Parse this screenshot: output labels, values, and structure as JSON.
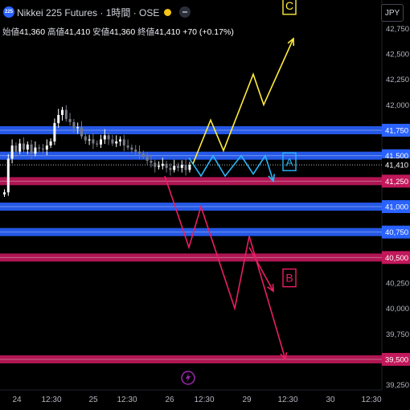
{
  "header": {
    "symbol_badge": "225",
    "title": "Nikkei 225 Futures · 1時間 · OSE",
    "currency": "JPY"
  },
  "ohlc": {
    "open_label": "始値",
    "open": "41,360",
    "high_label": "高値",
    "high": "41,410",
    "low_label": "安値",
    "low": "41,360",
    "close_label": "終値",
    "close": "41,410",
    "change": "+70 (+0.17%)"
  },
  "colors": {
    "background": "#000000",
    "up_candle": "#ffffff",
    "down_candle": "#787b86",
    "resistance_blue": "#2962ff",
    "support_red": "#c2185b",
    "scenario_a": "#29b6f6",
    "scenario_b": "#e91e63",
    "scenario_c": "#ffeb3b",
    "event_icon": "#9c27b0"
  },
  "price_axis": {
    "ticks": [
      "42,750",
      "42,500",
      "42,250",
      "42,000",
      "41,750",
      "41,500",
      "41,410",
      "41,250",
      "41,000",
      "40,750",
      "40,500",
      "40,250",
      "40,000",
      "39,750",
      "39,500",
      "39,250"
    ]
  },
  "time_axis": {
    "ticks": [
      "24",
      "12:30",
      "25",
      "12:30",
      "26",
      "12:30",
      "29",
      "12:30",
      "30",
      "12:30"
    ]
  },
  "levels": [
    {
      "price": 41750,
      "label": "41,750",
      "kind": "blue"
    },
    {
      "price": 41500,
      "label": "41,500",
      "kind": "blue"
    },
    {
      "price": 41250,
      "label": "41,250",
      "kind": "red"
    },
    {
      "price": 41000,
      "label": "41,000",
      "kind": "blue"
    },
    {
      "price": 40750,
      "label": "40,750",
      "kind": "blue"
    },
    {
      "price": 40500,
      "label": "40,500",
      "kind": "red"
    },
    {
      "price": 39500,
      "label": "39,500",
      "kind": "red"
    }
  ],
  "current_price": {
    "price": 41410,
    "label": "41,410"
  },
  "scenarios": [
    {
      "name": "A",
      "path": [
        [
          235,
          41480
        ],
        [
          250,
          41300
        ],
        [
          265,
          41500
        ],
        [
          280,
          41300
        ],
        [
          300,
          41500
        ],
        [
          315,
          41320
        ],
        [
          330,
          41500
        ],
        [
          340,
          41250
        ]
      ]
    },
    {
      "name": "B",
      "path": [
        [
          205,
          41300
        ],
        [
          235,
          40600
        ],
        [
          250,
          41000
        ],
        [
          292,
          40000
        ],
        [
          310,
          40710
        ],
        [
          355,
          39500
        ]
      ]
    },
    {
      "name": "C",
      "path": [
        [
          240,
          41420
        ],
        [
          262,
          41850
        ],
        [
          278,
          41550
        ],
        [
          315,
          42300
        ],
        [
          328,
          42000
        ],
        [
          365,
          42650
        ]
      ]
    }
  ],
  "event_icon": "lightning-icon"
}
